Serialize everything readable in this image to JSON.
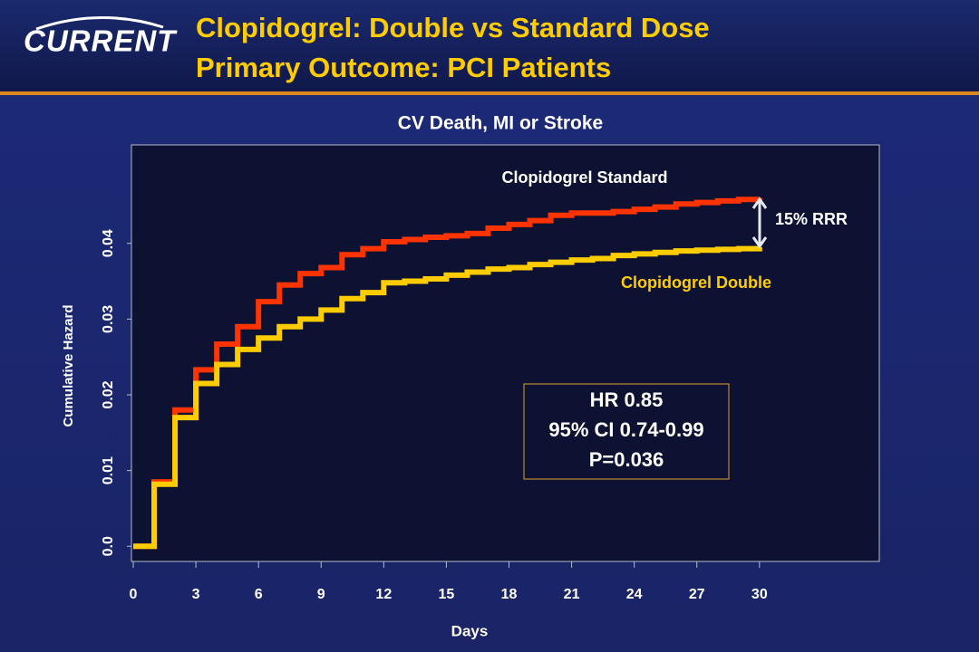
{
  "header": {
    "logo": "CURRENT",
    "title_line1": "Clopidogrel: Double vs Standard Dose",
    "title_line2": "Primary Outcome: PCI Patients"
  },
  "chart_data": {
    "type": "step",
    "title": "CV Death, MI or Stroke",
    "x_label": "Days",
    "y_label": "Cumulative Hazard",
    "x": [
      0,
      1,
      2,
      3,
      4,
      5,
      6,
      7,
      8,
      9,
      10,
      11,
      12,
      13,
      14,
      15,
      16,
      17,
      18,
      19,
      20,
      21,
      22,
      23,
      24,
      25,
      26,
      27,
      28,
      29,
      30
    ],
    "series": [
      {
        "name": "Clopidogrel Standard",
        "color": "#ff3300",
        "values": [
          0,
          0.0085,
          0.018,
          0.0233,
          0.0267,
          0.029,
          0.0323,
          0.0345,
          0.036,
          0.0368,
          0.0385,
          0.0393,
          0.0402,
          0.0405,
          0.0408,
          0.041,
          0.0413,
          0.042,
          0.0425,
          0.043,
          0.0437,
          0.044,
          0.044,
          0.0442,
          0.0445,
          0.0448,
          0.0452,
          0.0454,
          0.0456,
          0.0458,
          0.046
        ]
      },
      {
        "name": "Clopidogrel Double",
        "color": "#ffcc00",
        "values": [
          0,
          0.0082,
          0.017,
          0.0215,
          0.024,
          0.026,
          0.0275,
          0.029,
          0.03,
          0.0312,
          0.0327,
          0.0335,
          0.0348,
          0.035,
          0.0353,
          0.0358,
          0.0362,
          0.0366,
          0.0368,
          0.0372,
          0.0375,
          0.0378,
          0.038,
          0.0384,
          0.0386,
          0.0388,
          0.039,
          0.0391,
          0.0392,
          0.0393,
          0.0395
        ]
      }
    ],
    "xlim": [
      0,
      35.74
    ],
    "xticks": [
      0,
      3,
      6,
      9,
      12,
      15,
      18,
      21,
      24,
      27,
      30
    ],
    "ylim": [
      -0.002,
      0.053
    ],
    "yticks": [
      {
        "value": 0,
        "label": "0.0"
      },
      0.01,
      0.02,
      0.03,
      0.04
    ],
    "annotations": {
      "rrr": "15% RRR",
      "stats": [
        "HR 0.85",
        "95% CI 0.74-0.99",
        "P=0.036"
      ]
    }
  }
}
